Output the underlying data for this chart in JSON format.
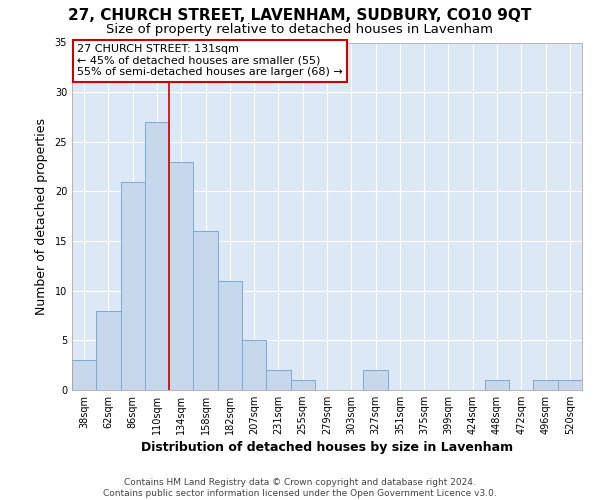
{
  "title": "27, CHURCH STREET, LAVENHAM, SUDBURY, CO10 9QT",
  "subtitle": "Size of property relative to detached houses in Lavenham",
  "xlabel": "Distribution of detached houses by size in Lavenham",
  "ylabel": "Number of detached properties",
  "bar_labels": [
    "38sqm",
    "62sqm",
    "86sqm",
    "110sqm",
    "134sqm",
    "158sqm",
    "182sqm",
    "207sqm",
    "231sqm",
    "255sqm",
    "279sqm",
    "303sqm",
    "327sqm",
    "351sqm",
    "375sqm",
    "399sqm",
    "424sqm",
    "448sqm",
    "472sqm",
    "496sqm",
    "520sqm"
  ],
  "bar_values": [
    3,
    8,
    21,
    27,
    23,
    16,
    11,
    5,
    2,
    1,
    0,
    0,
    2,
    0,
    0,
    0,
    0,
    1,
    0,
    1,
    1
  ],
  "bar_color": "#c8d8ec",
  "bar_edgecolor": "#7baad0",
  "property_label": "27 CHURCH STREET: 131sqm",
  "annotation_line1": "← 45% of detached houses are smaller (55)",
  "annotation_line2": "55% of semi-detached houses are larger (68) →",
  "vline_x_index": 4,
  "vline_color": "#cc0000",
  "box_edgecolor": "#cc0000",
  "ylim": [
    0,
    35
  ],
  "yticks": [
    0,
    5,
    10,
    15,
    20,
    25,
    30,
    35
  ],
  "footer_line1": "Contains HM Land Registry data © Crown copyright and database right 2024.",
  "footer_line2": "Contains public sector information licensed under the Open Government Licence v3.0.",
  "bg_color": "#ffffff",
  "plot_bg_color": "#dce8f5",
  "grid_color": "#ffffff",
  "title_fontsize": 11,
  "subtitle_fontsize": 9.5,
  "axis_label_fontsize": 9,
  "tick_fontsize": 7,
  "annotation_fontsize": 8,
  "footer_fontsize": 6.5
}
